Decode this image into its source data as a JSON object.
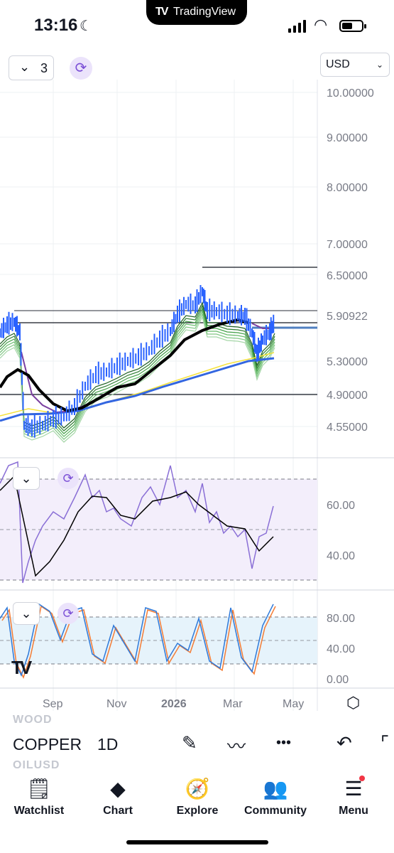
{
  "status": {
    "time": "13:16",
    "app_badge": "TradingView",
    "moon_icon": "moon-icon",
    "wifi_icon": "wifi-icon",
    "battery_icon": "battery-icon"
  },
  "toolbar": {
    "layout_count": "3",
    "currency": "USD",
    "chevron_icon": "chevron-down-icon",
    "sync_icon": "sync-icon"
  },
  "price_scale": [
    "10.00000",
    "9.00000",
    "8.00000",
    "7.00000",
    "6.50000",
    "5.90922",
    "5.30000",
    "4.90000",
    "4.55000"
  ],
  "current_price": "5.90922",
  "rsi_scale": [
    "60.00",
    "40.00"
  ],
  "stoch_scale": [
    "80.00",
    "40.00",
    "0.00"
  ],
  "time_axis": [
    "Sep",
    "Nov",
    "2026",
    "Mar",
    "May"
  ],
  "symbol_bar": {
    "ghost_above": "WOOD",
    "symbol": "COPPER",
    "interval": "1D",
    "ghost_below": "OILUSD",
    "tools": [
      {
        "name": "draw-tool-icon",
        "glyph": "✎"
      },
      {
        "name": "indicators-icon",
        "glyph": "〰"
      },
      {
        "name": "more-options-icon",
        "glyph": "•••"
      },
      {
        "name": "undo-icon",
        "glyph": "↶"
      }
    ]
  },
  "tabs": [
    {
      "label": "Watchlist",
      "icon": "watchlist-icon",
      "glyph": "🗒"
    },
    {
      "label": "Chart",
      "icon": "chart-icon",
      "glyph": "◆"
    },
    {
      "label": "Explore",
      "icon": "compass-icon",
      "glyph": "🧭"
    },
    {
      "label": "Community",
      "icon": "community-icon",
      "glyph": "👥"
    },
    {
      "label": "Menu",
      "icon": "menu-icon",
      "glyph": "☰"
    }
  ],
  "colors": {
    "price_line": "#1f2a7a",
    "candle_up": "#2962ff",
    "ema_short": "#4caf50",
    "ma_long": "#3366e0",
    "ma_yellow": "#f5e23c",
    "rsi_line": "#8a6fd6",
    "rsi_band": "#f3eefb",
    "stoch_k": "#2e79d9",
    "stoch_d": "#f57c34",
    "stoch_band": "#e6f3fb",
    "accent_red": "#f23645"
  }
}
